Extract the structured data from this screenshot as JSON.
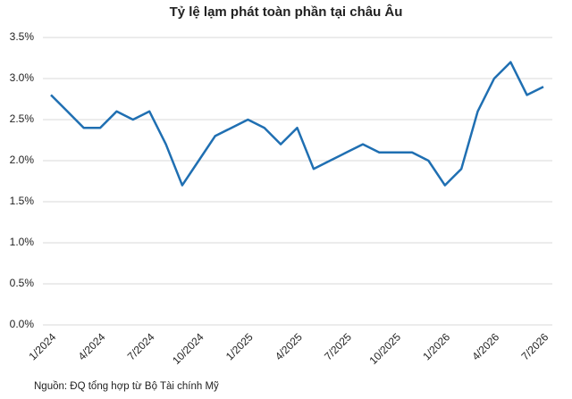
{
  "chart_data": {
    "type": "line",
    "title": "Tỷ lệ lạm phát toàn phần tại châu Âu",
    "categories": [
      "1/2024",
      null,
      null,
      "4/2024",
      null,
      null,
      "7/2024",
      null,
      null,
      "10/2024",
      null,
      null,
      "1/2025",
      null,
      null,
      "4/2025",
      null,
      null,
      "7/2025",
      null,
      null,
      "10/2025",
      null,
      null,
      "1/2026",
      null,
      null,
      "4/2026",
      null,
      null,
      "7/2026"
    ],
    "series": [
      {
        "name": "Tỷ lệ lạm phát",
        "color": "#1f6fb2",
        "values": [
          2.8,
          2.6,
          2.4,
          2.4,
          2.6,
          2.5,
          2.6,
          2.2,
          1.7,
          2.0,
          2.3,
          2.4,
          2.5,
          2.4,
          2.2,
          2.4,
          1.9,
          2.0,
          2.1,
          2.2,
          2.1,
          2.1,
          2.1,
          2.0,
          1.7,
          1.9,
          2.6,
          3.0,
          3.2,
          2.8,
          2.9
        ]
      }
    ],
    "ylim": [
      0,
      3.5
    ],
    "yticks": [
      {
        "value": 0,
        "label": "0.0%"
      },
      {
        "value": 0.5,
        "label": "0.5%"
      },
      {
        "value": 1,
        "label": "1.0%"
      },
      {
        "value": 1.5,
        "label": "1.5%"
      },
      {
        "value": 2,
        "label": "2.0%"
      },
      {
        "value": 2.5,
        "label": "2.5%"
      },
      {
        "value": 3,
        "label": "3.0%"
      },
      {
        "value": 3.5,
        "label": "3.5%"
      }
    ],
    "grid": true,
    "source": "Nguồn: ĐQ tổng hợp từ Bộ Tài chính Mỹ"
  }
}
